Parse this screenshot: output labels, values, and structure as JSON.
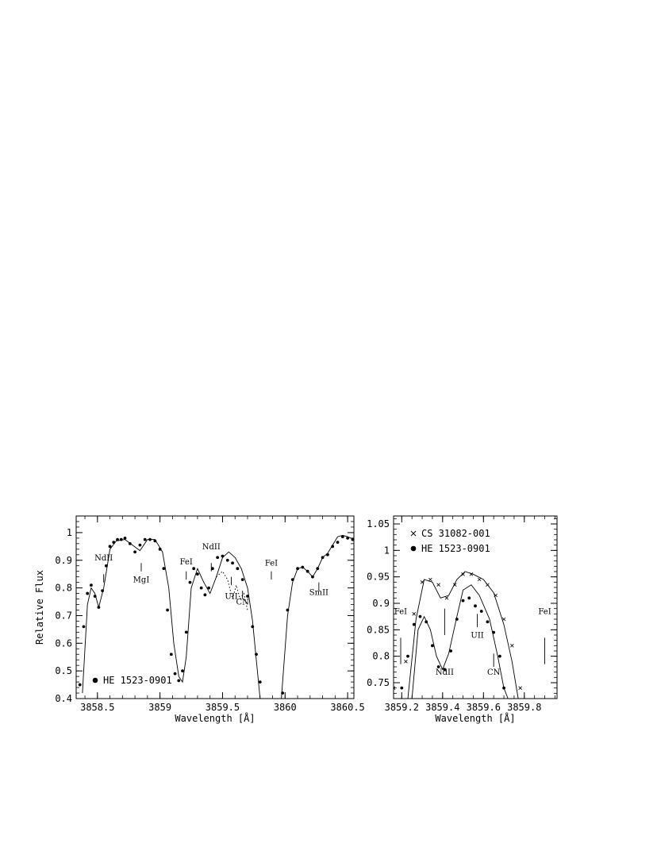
{
  "chart_data": [
    {
      "type": "line",
      "xlabel": "Wavelength [Å]",
      "ylabel": "Relative Flux",
      "xlim": [
        3858.33,
        3860.55
      ],
      "ylim": [
        0.4,
        1.06
      ],
      "x_ticks": [
        "3858.5",
        "3859",
        "3859.5",
        "3860",
        "3860.5"
      ],
      "y_ticks": [
        "0.4",
        "0.5",
        "0.6",
        "0.7",
        "0.8",
        "0.9",
        "1"
      ],
      "legend": [
        {
          "marker": "filled-circle",
          "label": "HE 1523-0901"
        }
      ],
      "series": [
        {
          "name": "HE 1523-0901",
          "style": "points",
          "x": [
            3858.36,
            3858.39,
            3858.42,
            3858.45,
            3858.48,
            3858.51,
            3858.54,
            3858.57,
            3858.6,
            3858.63,
            3858.66,
            3858.69,
            3858.72,
            3858.76,
            3858.8,
            3858.84,
            3858.88,
            3858.92,
            3858.96,
            3859.0,
            3859.03,
            3859.06,
            3859.09,
            3859.12,
            3859.15,
            3859.18,
            3859.21,
            3859.24,
            3859.27,
            3859.3,
            3859.33,
            3859.36,
            3859.39,
            3859.42,
            3859.46,
            3859.5,
            3859.54,
            3859.58,
            3859.62,
            3859.66,
            3859.7,
            3859.74,
            3859.77,
            3859.8,
            3859.98,
            3860.02,
            3860.06,
            3860.1,
            3860.14,
            3860.18,
            3860.22,
            3860.26,
            3860.3,
            3860.34,
            3860.38,
            3860.42,
            3860.46,
            3860.5,
            3860.54
          ],
          "y": [
            0.45,
            0.66,
            0.78,
            0.81,
            0.77,
            0.73,
            0.79,
            0.88,
            0.95,
            0.965,
            0.975,
            0.975,
            0.98,
            0.96,
            0.93,
            0.955,
            0.975,
            0.975,
            0.97,
            0.94,
            0.87,
            0.72,
            0.56,
            0.49,
            0.465,
            0.5,
            0.64,
            0.82,
            0.87,
            0.85,
            0.8,
            0.775,
            0.8,
            0.87,
            0.91,
            0.915,
            0.9,
            0.89,
            0.87,
            0.83,
            0.77,
            0.66,
            0.56,
            0.46,
            0.42,
            0.72,
            0.83,
            0.87,
            0.875,
            0.86,
            0.84,
            0.87,
            0.91,
            0.92,
            0.95,
            0.965,
            0.985,
            0.98,
            0.975
          ]
        },
        {
          "name": "",
          "style": "solid",
          "x": [
            3858.38,
            3858.42,
            3858.45,
            3858.48,
            3858.51,
            3858.55,
            3858.6,
            3858.65,
            3858.72,
            3858.78,
            3858.84,
            3858.9,
            3858.96,
            3859.02,
            3859.07,
            3859.11,
            3859.15,
            3859.18,
            3859.21,
            3859.25,
            3859.3,
            3859.35,
            3859.4,
            3859.45,
            3859.5,
            3859.55,
            3859.6,
            3859.65,
            3859.7,
            3859.74,
            3859.77,
            3859.8
          ],
          "y": [
            0.42,
            0.74,
            0.8,
            0.78,
            0.73,
            0.8,
            0.94,
            0.97,
            0.975,
            0.955,
            0.935,
            0.975,
            0.975,
            0.93,
            0.8,
            0.6,
            0.48,
            0.46,
            0.55,
            0.8,
            0.87,
            0.82,
            0.78,
            0.84,
            0.91,
            0.93,
            0.91,
            0.87,
            0.8,
            0.68,
            0.54,
            0.4
          ]
        },
        {
          "name": "",
          "style": "solid",
          "x": [
            3859.97,
            3860.02,
            3860.06,
            3860.1,
            3860.14,
            3860.18,
            3860.22,
            3860.26,
            3860.3,
            3860.34,
            3860.38,
            3860.42,
            3860.46,
            3860.5,
            3860.55
          ],
          "y": [
            0.4,
            0.7,
            0.82,
            0.87,
            0.875,
            0.86,
            0.84,
            0.87,
            0.91,
            0.925,
            0.955,
            0.985,
            0.99,
            0.985,
            0.975
          ]
        },
        {
          "name": "",
          "style": "dotted",
          "x": [
            3859.45,
            3859.5,
            3859.54,
            3859.58,
            3859.61,
            3859.64,
            3859.67,
            3859.7
          ],
          "y": [
            0.84,
            0.86,
            0.83,
            0.76,
            0.81,
            0.76,
            0.78,
            0.72
          ]
        }
      ],
      "annotations": [
        {
          "label": "NdII",
          "x": 3858.55,
          "tick": [
            0.82,
            0.85
          ],
          "text_y": 0.9
        },
        {
          "label": "MgI",
          "x": 3858.85,
          "tick": [
            0.86,
            0.89
          ],
          "text_y": 0.82
        },
        {
          "label": "FeI",
          "x": 3859.21,
          "tick": [
            0.83,
            0.86
          ],
          "text_y": 0.885
        },
        {
          "label": "NdII",
          "x": 3859.41,
          "tick": [
            0.86,
            0.89
          ],
          "text_y": 0.94
        },
        {
          "label": "UII",
          "x": 3859.57,
          "tick": [
            0.81,
            0.84
          ],
          "text_y": 0.76
        },
        {
          "label": "CN",
          "x": 3859.66,
          "tick": [
            0.76,
            0.79
          ],
          "text_y": 0.74
        },
        {
          "label": "FeI",
          "x": 3859.89,
          "tick": [
            0.83,
            0.86
          ],
          "text_y": 0.88
        },
        {
          "label": "SmII",
          "x": 3860.27,
          "tick": [
            0.79,
            0.82
          ],
          "text_y": 0.775
        }
      ]
    },
    {
      "type": "line",
      "xlabel": "Wavelength [Å]",
      "ylabel": "",
      "xlim": [
        3859.16,
        3859.96
      ],
      "ylim": [
        0.72,
        1.065
      ],
      "x_ticks": [
        "3859.2",
        "3859.4",
        "3859.6",
        "3859.8"
      ],
      "y_ticks": [
        "0.75",
        "0.8",
        "0.85",
        "0.9",
        "0.95",
        "1",
        "1.05"
      ],
      "legend": [
        {
          "marker": "cross",
          "label": "CS 31082-001"
        },
        {
          "marker": "filled-circle",
          "label": "HE 1523-0901"
        }
      ],
      "series": [
        {
          "name": "CS 31082-001",
          "style": "crosses",
          "x": [
            3859.16,
            3859.22,
            3859.26,
            3859.3,
            3859.34,
            3859.38,
            3859.42,
            3859.46,
            3859.5,
            3859.54,
            3859.58,
            3859.62,
            3859.66,
            3859.7,
            3859.74,
            3859.78
          ],
          "y": [
            0.74,
            0.79,
            0.88,
            0.94,
            0.945,
            0.935,
            0.91,
            0.935,
            0.955,
            0.955,
            0.945,
            0.935,
            0.915,
            0.87,
            0.82,
            0.74
          ]
        },
        {
          "name": "HE 1523-0901",
          "style": "points",
          "x": [
            3859.2,
            3859.23,
            3859.26,
            3859.29,
            3859.32,
            3859.35,
            3859.38,
            3859.41,
            3859.44,
            3859.47,
            3859.5,
            3859.53,
            3859.56,
            3859.59,
            3859.62,
            3859.65,
            3859.68,
            3859.7
          ],
          "y": [
            0.74,
            0.8,
            0.86,
            0.875,
            0.865,
            0.82,
            0.78,
            0.775,
            0.81,
            0.87,
            0.905,
            0.91,
            0.895,
            0.885,
            0.865,
            0.845,
            0.8,
            0.74
          ]
        },
        {
          "name": "",
          "style": "solid",
          "x": [
            3859.23,
            3859.27,
            3859.31,
            3859.35,
            3859.39,
            3859.43,
            3859.47,
            3859.51,
            3859.55,
            3859.6,
            3859.65,
            3859.7,
            3859.74,
            3859.77
          ],
          "y": [
            0.72,
            0.87,
            0.945,
            0.94,
            0.91,
            0.915,
            0.945,
            0.96,
            0.955,
            0.945,
            0.92,
            0.86,
            0.79,
            0.72
          ]
        },
        {
          "name": "",
          "style": "solid",
          "x": [
            3859.25,
            3859.28,
            3859.31,
            3859.34,
            3859.37,
            3859.4,
            3859.43,
            3859.47,
            3859.5,
            3859.54,
            3859.58,
            3859.63,
            3859.67,
            3859.7,
            3859.72
          ],
          "y": [
            0.72,
            0.85,
            0.875,
            0.85,
            0.8,
            0.775,
            0.805,
            0.875,
            0.925,
            0.935,
            0.915,
            0.87,
            0.8,
            0.74,
            0.72
          ]
        }
      ],
      "annotations": [
        {
          "label": "FeI",
          "x": 3859.195,
          "tick": [
            0.785,
            0.835
          ],
          "text_y": 0.88
        },
        {
          "label": "NdII",
          "x": 3859.41,
          "tick": [
            0.84,
            0.89
          ],
          "text_y": 0.765
        },
        {
          "label": "UII",
          "x": 3859.57,
          "tick": [
            0.855,
            0.88
          ],
          "text_y": 0.835
        },
        {
          "label": "CN",
          "x": 3859.65,
          "tick": [
            0.78,
            0.805
          ],
          "text_y": 0.765
        },
        {
          "label": "FeI",
          "x": 3859.9,
          "tick": [
            0.785,
            0.835
          ],
          "text_y": 0.88
        }
      ]
    }
  ]
}
